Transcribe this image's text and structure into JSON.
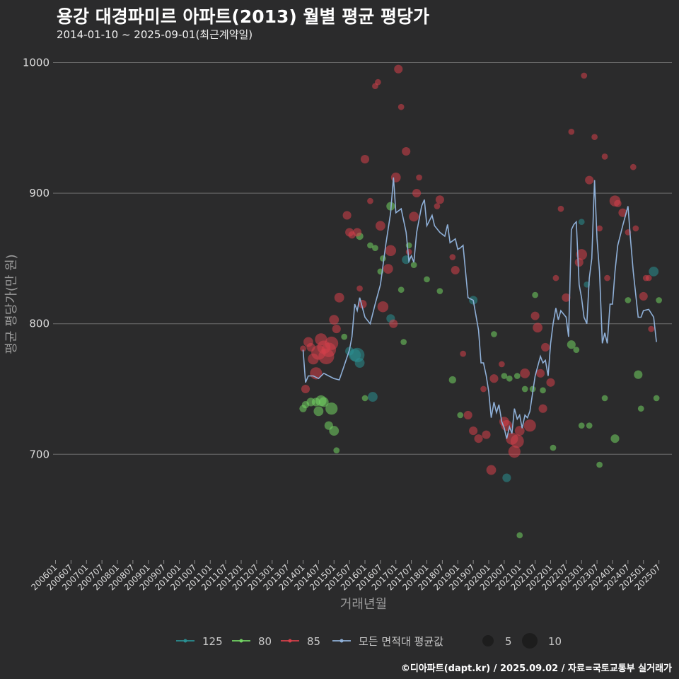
{
  "title": "용강 대경파미르 아파트(2013) 월별 평균 평당가",
  "subtitle": "2014-01-10 ~ 2025-09-01(최근계약일)",
  "credit": "©디아파트(dapt.kr) / 2025.09.02 / 자료=국토교통부 실거래가",
  "colors": {
    "background": "#2b2b2c",
    "grid": "#6e6e6e",
    "s125": "#2a8f92",
    "s80": "#72d363",
    "s85": "#d6404a",
    "avg": "#8fb0d8"
  },
  "chart_data": {
    "type": "line+scatter",
    "title": "용강 대경파미르 아파트(2013) 월별 평균 평당가",
    "xlabel": "거래년월",
    "ylabel": "평균 평당가(만 원)",
    "ylim": [
      620,
      1010
    ],
    "yticks": [
      700,
      800,
      900,
      1000
    ],
    "xlim": [
      2005.92,
      2025.92
    ],
    "xticks": [
      "200601",
      "200607",
      "200701",
      "200707",
      "200801",
      "200807",
      "200901",
      "200907",
      "201001",
      "201007",
      "201101",
      "201107",
      "201201",
      "201207",
      "201301",
      "201307",
      "201401",
      "201407",
      "201501",
      "201507",
      "201601",
      "201607",
      "201701",
      "201707",
      "201801",
      "201807",
      "201901",
      "201907",
      "202001",
      "202007",
      "202101",
      "202107",
      "202201",
      "202207",
      "202301",
      "202307",
      "202401",
      "202407",
      "202501",
      "202507"
    ],
    "size_legend": [
      5,
      10
    ],
    "legend": [
      {
        "key": "125",
        "label": "125"
      },
      {
        "key": "80",
        "label": "80"
      },
      {
        "key": "85",
        "label": "85"
      },
      {
        "key": "avg",
        "label": "모든 면적대 평균값"
      }
    ],
    "average_line": {
      "name": "모든 면적대 평균값",
      "points": [
        [
          2014.0,
          780
        ],
        [
          2014.08,
          755
        ],
        [
          2014.17,
          760
        ],
        [
          2014.33,
          760
        ],
        [
          2014.5,
          758
        ],
        [
          2014.67,
          762
        ],
        [
          2014.83,
          760
        ],
        [
          2015.0,
          758
        ],
        [
          2015.17,
          757
        ],
        [
          2015.33,
          768
        ],
        [
          2015.5,
          780
        ],
        [
          2015.58,
          790
        ],
        [
          2015.67,
          815
        ],
        [
          2015.75,
          810
        ],
        [
          2015.83,
          820
        ],
        [
          2016.0,
          805
        ],
        [
          2016.17,
          800
        ],
        [
          2016.33,
          815
        ],
        [
          2016.5,
          830
        ],
        [
          2016.67,
          860
        ],
        [
          2016.83,
          885
        ],
        [
          2016.92,
          912
        ],
        [
          2017.0,
          885
        ],
        [
          2017.17,
          888
        ],
        [
          2017.33,
          870
        ],
        [
          2017.42,
          848
        ],
        [
          2017.5,
          852
        ],
        [
          2017.58,
          847
        ],
        [
          2017.67,
          870
        ],
        [
          2017.83,
          890
        ],
        [
          2017.92,
          895
        ],
        [
          2018.0,
          875
        ],
        [
          2018.17,
          883
        ],
        [
          2018.25,
          875
        ],
        [
          2018.42,
          870
        ],
        [
          2018.58,
          867
        ],
        [
          2018.67,
          876
        ],
        [
          2018.75,
          862
        ],
        [
          2018.92,
          865
        ],
        [
          2019.0,
          857
        ],
        [
          2019.08,
          858
        ],
        [
          2019.17,
          860
        ],
        [
          2019.33,
          820
        ],
        [
          2019.5,
          818
        ],
        [
          2019.67,
          795
        ],
        [
          2019.75,
          770
        ],
        [
          2019.83,
          770
        ],
        [
          2019.92,
          760
        ],
        [
          2020.0,
          748
        ],
        [
          2020.08,
          728
        ],
        [
          2020.17,
          740
        ],
        [
          2020.25,
          732
        ],
        [
          2020.33,
          738
        ],
        [
          2020.42,
          725
        ],
        [
          2020.5,
          720
        ],
        [
          2020.58,
          712
        ],
        [
          2020.67,
          721
        ],
        [
          2020.75,
          716
        ],
        [
          2020.83,
          735
        ],
        [
          2020.92,
          727
        ],
        [
          2021.0,
          730
        ],
        [
          2021.08,
          720
        ],
        [
          2021.17,
          730
        ],
        [
          2021.25,
          728
        ],
        [
          2021.33,
          733
        ],
        [
          2021.5,
          760
        ],
        [
          2021.67,
          775
        ],
        [
          2021.75,
          770
        ],
        [
          2021.83,
          772
        ],
        [
          2021.92,
          760
        ],
        [
          2022.0,
          785
        ],
        [
          2022.08,
          800
        ],
        [
          2022.17,
          812
        ],
        [
          2022.25,
          803
        ],
        [
          2022.33,
          810
        ],
        [
          2022.5,
          805
        ],
        [
          2022.58,
          790
        ],
        [
          2022.67,
          872
        ],
        [
          2022.75,
          876
        ],
        [
          2022.83,
          878
        ],
        [
          2022.92,
          830
        ],
        [
          2023.0,
          820
        ],
        [
          2023.08,
          805
        ],
        [
          2023.17,
          800
        ],
        [
          2023.25,
          835
        ],
        [
          2023.33,
          850
        ],
        [
          2023.42,
          910
        ],
        [
          2023.5,
          865
        ],
        [
          2023.58,
          840
        ],
        [
          2023.67,
          785
        ],
        [
          2023.75,
          793
        ],
        [
          2023.83,
          785
        ],
        [
          2023.92,
          815
        ],
        [
          2024.0,
          815
        ],
        [
          2024.08,
          840
        ],
        [
          2024.17,
          860
        ],
        [
          2024.33,
          875
        ],
        [
          2024.5,
          890
        ],
        [
          2024.58,
          865
        ],
        [
          2024.67,
          840
        ],
        [
          2024.83,
          805
        ],
        [
          2024.92,
          805
        ],
        [
          2025.0,
          810
        ],
        [
          2025.17,
          811
        ],
        [
          2025.33,
          805
        ],
        [
          2025.42,
          786
        ]
      ]
    },
    "series": [
      {
        "name": "125",
        "color_key": "s125",
        "points": [
          [
            2015.5,
            779,
            5
          ],
          [
            2015.67,
            776,
            8
          ],
          [
            2015.75,
            776,
            10
          ],
          [
            2015.83,
            770,
            6
          ],
          [
            2016.25,
            744,
            6
          ],
          [
            2016.83,
            804,
            5
          ],
          [
            2017.33,
            849,
            5
          ],
          [
            2019.5,
            818,
            5
          ],
          [
            2020.58,
            682,
            5
          ],
          [
            2023.0,
            878,
            3
          ],
          [
            2023.17,
            830,
            3
          ],
          [
            2025.33,
            840,
            6
          ]
        ]
      },
      {
        "name": "80",
        "color_key": "s80",
        "points": [
          [
            2014.0,
            735,
            4
          ],
          [
            2014.08,
            738,
            4
          ],
          [
            2014.25,
            740,
            5
          ],
          [
            2014.42,
            740,
            5
          ],
          [
            2014.5,
            733,
            6
          ],
          [
            2014.58,
            741,
            7
          ],
          [
            2014.67,
            740,
            6
          ],
          [
            2014.83,
            722,
            5
          ],
          [
            2014.92,
            735,
            8
          ],
          [
            2015.0,
            718,
            6
          ],
          [
            2015.08,
            703,
            3
          ],
          [
            2015.33,
            790,
            3
          ],
          [
            2015.83,
            867,
            4
          ],
          [
            2016.0,
            743,
            3
          ],
          [
            2016.17,
            860,
            3
          ],
          [
            2016.33,
            858,
            3
          ],
          [
            2016.5,
            840,
            3
          ],
          [
            2016.58,
            850,
            3
          ],
          [
            2016.83,
            890,
            5
          ],
          [
            2017.17,
            826,
            3
          ],
          [
            2017.25,
            786,
            3
          ],
          [
            2017.42,
            860,
            3
          ],
          [
            2017.58,
            845,
            3
          ],
          [
            2018.0,
            834,
            3
          ],
          [
            2018.42,
            825,
            3
          ],
          [
            2018.83,
            757,
            4
          ],
          [
            2019.08,
            730,
            3
          ],
          [
            2020.17,
            792,
            3
          ],
          [
            2020.5,
            760,
            3
          ],
          [
            2020.67,
            758,
            3
          ],
          [
            2020.92,
            760,
            3
          ],
          [
            2021.0,
            638,
            3
          ],
          [
            2021.17,
            750,
            3
          ],
          [
            2021.42,
            750,
            3
          ],
          [
            2021.5,
            822,
            3
          ],
          [
            2021.75,
            749,
            3
          ],
          [
            2022.08,
            705,
            3
          ],
          [
            2022.67,
            784,
            5
          ],
          [
            2022.83,
            780,
            3
          ],
          [
            2023.0,
            722,
            3
          ],
          [
            2023.25,
            722,
            3
          ],
          [
            2023.58,
            692,
            3
          ],
          [
            2023.75,
            743,
            3
          ],
          [
            2024.08,
            712,
            5
          ],
          [
            2024.5,
            818,
            3
          ],
          [
            2024.83,
            761,
            5
          ],
          [
            2024.92,
            735,
            3
          ],
          [
            2025.42,
            743,
            3
          ],
          [
            2025.5,
            818,
            3
          ]
        ]
      },
      {
        "name": "85",
        "color_key": "s85",
        "points": [
          [
            2014.0,
            781,
            3
          ],
          [
            2014.08,
            750,
            5
          ],
          [
            2014.17,
            786,
            6
          ],
          [
            2014.25,
            782,
            5
          ],
          [
            2014.33,
            773,
            7
          ],
          [
            2014.42,
            762,
            8
          ],
          [
            2014.5,
            778,
            10
          ],
          [
            2014.58,
            788,
            8
          ],
          [
            2014.67,
            782,
            9
          ],
          [
            2014.75,
            775,
            11
          ],
          [
            2014.83,
            780,
            10
          ],
          [
            2014.92,
            785,
            9
          ],
          [
            2015.0,
            803,
            6
          ],
          [
            2015.08,
            796,
            5
          ],
          [
            2015.17,
            820,
            6
          ],
          [
            2015.42,
            883,
            5
          ],
          [
            2015.5,
            870,
            5
          ],
          [
            2015.58,
            868,
            4
          ],
          [
            2015.75,
            870,
            5
          ],
          [
            2015.83,
            827,
            3
          ],
          [
            2015.92,
            815,
            5
          ],
          [
            2016.0,
            926,
            5
          ],
          [
            2016.17,
            894,
            3
          ],
          [
            2016.33,
            982,
            3
          ],
          [
            2016.42,
            985,
            3
          ],
          [
            2016.5,
            875,
            6
          ],
          [
            2016.58,
            813,
            7
          ],
          [
            2016.75,
            842,
            6
          ],
          [
            2016.83,
            856,
            7
          ],
          [
            2016.92,
            800,
            5
          ],
          [
            2017.0,
            912,
            6
          ],
          [
            2017.08,
            995,
            5
          ],
          [
            2017.17,
            966,
            3
          ],
          [
            2017.33,
            932,
            5
          ],
          [
            2017.42,
            855,
            3
          ],
          [
            2017.58,
            882,
            6
          ],
          [
            2017.67,
            900,
            5
          ],
          [
            2017.75,
            912,
            3
          ],
          [
            2018.33,
            890,
            3
          ],
          [
            2018.42,
            895,
            5
          ],
          [
            2018.83,
            851,
            3
          ],
          [
            2018.92,
            841,
            5
          ],
          [
            2019.17,
            777,
            3
          ],
          [
            2019.33,
            730,
            5
          ],
          [
            2019.5,
            718,
            5
          ],
          [
            2019.67,
            712,
            5
          ],
          [
            2019.83,
            750,
            3
          ],
          [
            2019.92,
            715,
            5
          ],
          [
            2020.08,
            688,
            6
          ],
          [
            2020.17,
            758,
            5
          ],
          [
            2020.42,
            769,
            3
          ],
          [
            2020.5,
            725,
            6
          ],
          [
            2020.58,
            722,
            7
          ],
          [
            2020.75,
            712,
            8
          ],
          [
            2020.83,
            702,
            8
          ],
          [
            2020.92,
            710,
            9
          ],
          [
            2021.0,
            718,
            6
          ],
          [
            2021.17,
            762,
            6
          ],
          [
            2021.33,
            722,
            8
          ],
          [
            2021.5,
            806,
            5
          ],
          [
            2021.58,
            797,
            6
          ],
          [
            2021.67,
            762,
            5
          ],
          [
            2021.75,
            735,
            5
          ],
          [
            2021.83,
            782,
            5
          ],
          [
            2022.0,
            755,
            5
          ],
          [
            2022.17,
            835,
            3
          ],
          [
            2022.33,
            888,
            3
          ],
          [
            2022.5,
            820,
            5
          ],
          [
            2022.67,
            947,
            3
          ],
          [
            2022.92,
            847,
            5
          ],
          [
            2023.0,
            853,
            7
          ],
          [
            2023.08,
            990,
            3
          ],
          [
            2023.25,
            910,
            5
          ],
          [
            2023.42,
            943,
            3
          ],
          [
            2023.58,
            873,
            3
          ],
          [
            2023.75,
            928,
            3
          ],
          [
            2023.83,
            835,
            3
          ],
          [
            2024.08,
            894,
            7
          ],
          [
            2024.17,
            892,
            4
          ],
          [
            2024.33,
            885,
            5
          ],
          [
            2024.5,
            870,
            3
          ],
          [
            2024.67,
            920,
            3
          ],
          [
            2024.75,
            873,
            3
          ],
          [
            2025.0,
            821,
            5
          ],
          [
            2025.08,
            835,
            3
          ],
          [
            2025.17,
            835,
            3
          ],
          [
            2025.25,
            796,
            3
          ]
        ]
      }
    ]
  }
}
